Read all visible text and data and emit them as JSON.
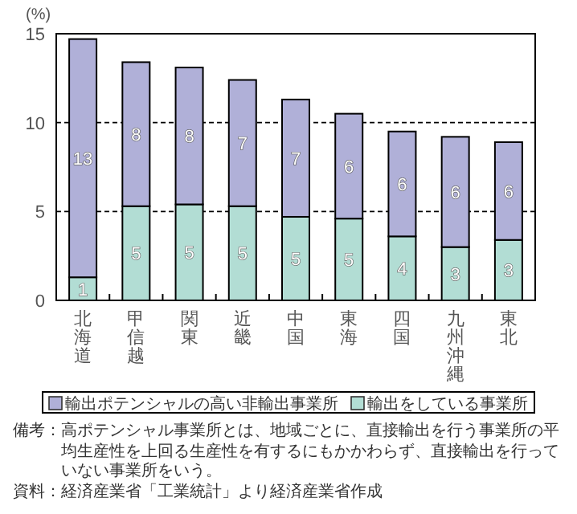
{
  "chart_data": {
    "type": "bar",
    "stacked": true,
    "ylabel": "(%)",
    "categories": [
      "北海道",
      "甲信越",
      "関東",
      "近畿",
      "中国",
      "東海",
      "四国",
      "九州沖縄",
      "東北"
    ],
    "series": [
      {
        "name": "輸出をしている事業所",
        "color": "#b2ddd4",
        "values": [
          1.3,
          5.3,
          5.4,
          5.3,
          4.7,
          4.6,
          3.6,
          3.0,
          3.4
        ],
        "value_labels": [
          "1",
          "5",
          "5",
          "5",
          "5",
          "5",
          "4",
          "3",
          "3"
        ]
      },
      {
        "name": "輸出ポテンシャルの高い非輸出事業所",
        "color": "#b0b0d8",
        "values": [
          13.4,
          8.1,
          7.7,
          7.1,
          6.6,
          5.9,
          5.9,
          6.2,
          5.5
        ],
        "value_labels": [
          "13",
          "8",
          "8",
          "7",
          "7",
          "6",
          "6",
          "6",
          "6"
        ]
      }
    ],
    "ylim": [
      0,
      15
    ],
    "yticks": [
      0,
      5,
      10,
      15
    ],
    "grid": "y",
    "legend": "bottom",
    "annotations": [
      "備考：高ポテンシャル事業所とは、地域ごとに、直接輸出を行う事業所の平均生産性を上回る生産性を有するにもかかわらず、直接輸出を行っていない事業所をいう。",
      "資料：経済産業省「工業統計」より経済産業省作成"
    ]
  }
}
